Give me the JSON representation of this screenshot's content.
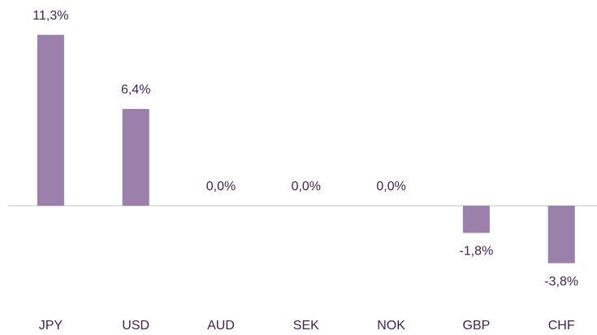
{
  "chart_data": {
    "type": "bar",
    "categories": [
      "JPY",
      "USD",
      "AUD",
      "SEK",
      "NOK",
      "GBP",
      "CHF"
    ],
    "values": [
      11.3,
      6.4,
      0.0,
      0.0,
      0.0,
      -1.8,
      -3.8
    ],
    "value_labels": [
      "11,3%",
      "6,4%",
      "0,0%",
      "0,0%",
      "0,0%",
      "-1,8%",
      "-3,8%"
    ],
    "color": "#9b80ab",
    "ylim": [
      -5,
      12
    ]
  }
}
